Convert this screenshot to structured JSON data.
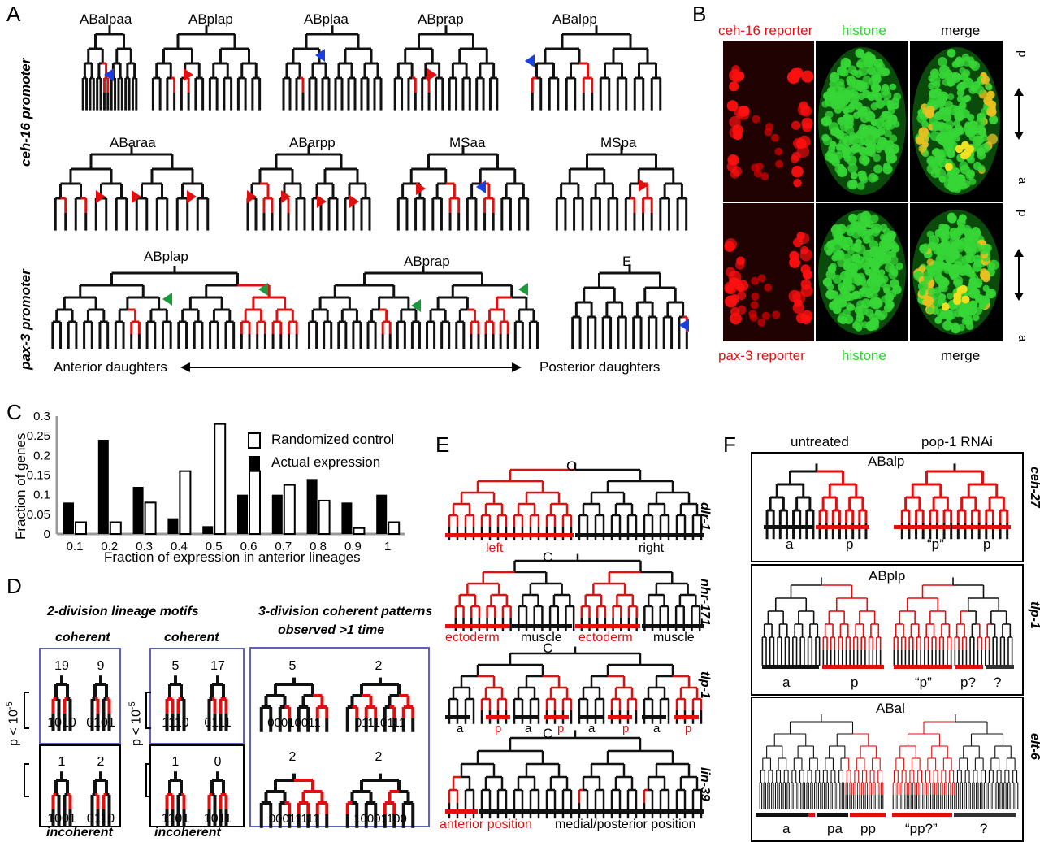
{
  "panels": {
    "A": {
      "letter": "A",
      "side_label_1": "ceh-16 promoter",
      "side_label_2": "pax-3 promoter",
      "row1": [
        "ABalpaa",
        "ABplap",
        "ABplaa",
        "ABprap",
        "ABalpp"
      ],
      "row2": [
        "ABaraa",
        "ABarpp",
        "MSaa",
        "MSpa"
      ],
      "row3": [
        "ABplap",
        "ABprap",
        "E"
      ],
      "anterior": "Anterior daughters",
      "posterior": "Posterior daughters"
    },
    "B": {
      "letter": "B",
      "top_labels": [
        "ceh-16 reporter",
        "histone",
        "merge"
      ],
      "bottom_labels": [
        "pax-3 reporter",
        "histone",
        "merge"
      ],
      "axis_p": "p",
      "axis_a": "a"
    },
    "C": {
      "letter": "C",
      "legend_control": "Randomized control",
      "legend_actual": "Actual expression"
    },
    "D": {
      "letter": "D",
      "title_left": "2-division lineage motifs",
      "title_right_1": "3-division coherent patterns",
      "title_right_2": "observed >1 time",
      "coherent": "coherent",
      "incoherent": "incoherent",
      "pvalue": "p < 10",
      "pexp": "-5",
      "box1": {
        "counts": [
          "19",
          "9"
        ],
        "codes": [
          "1010",
          "0101"
        ]
      },
      "box2": {
        "counts": [
          "1",
          "2"
        ],
        "codes": [
          "1001",
          "0110"
        ]
      },
      "box3": {
        "counts": [
          "5",
          "17"
        ],
        "codes": [
          "1110",
          "0111"
        ]
      },
      "box4": {
        "counts": [
          "1",
          "0"
        ],
        "codes": [
          "1101",
          "1011"
        ]
      },
      "box5": {
        "counts": [
          "5",
          "2",
          "2",
          "2"
        ],
        "codes": [
          "00010011",
          "01110111",
          "00011111",
          "10001100"
        ]
      }
    },
    "E": {
      "letter": "E",
      "root": "C",
      "genes": [
        "dlr-1",
        "nhr-171",
        "tlp-1",
        "lin-39"
      ],
      "row1": [
        "left",
        "right"
      ],
      "row2": [
        "ectoderm",
        "muscle",
        "ectoderm",
        "muscle"
      ],
      "row3": [
        "a",
        "p",
        "a",
        "p",
        "a",
        "p",
        "a",
        "p"
      ],
      "row4": [
        "anterior position",
        "medial/posterior position"
      ]
    },
    "F": {
      "letter": "F",
      "col_untreated": "untreated",
      "col_rnai": "pop-1 RNAi",
      "genes": [
        "ceh-27",
        "tlp-1",
        "elt-6"
      ],
      "lineages": [
        "ABalp",
        "ABplp",
        "ABal"
      ],
      "box1": [
        "a",
        "p",
        "“p”",
        "p"
      ],
      "box2": [
        "a",
        "p",
        "“p”",
        "p?",
        "?"
      ],
      "box3": [
        "a",
        "pa",
        "pp",
        "“pp?”",
        "?"
      ]
    }
  },
  "chart_data": {
    "type": "bar",
    "categories": [
      "0.1",
      "0.2",
      "0.3",
      "0.4",
      "0.5",
      "0.6",
      "0.7",
      "0.8",
      "0.9",
      "1"
    ],
    "series": [
      {
        "name": "Actual expression",
        "values": [
          0.08,
          0.24,
          0.12,
          0.04,
          0.02,
          0.1,
          0.1,
          0.14,
          0.08,
          0.1
        ]
      },
      {
        "name": "Randomized control",
        "values": [
          0.03,
          0.03,
          0.08,
          0.16,
          0.28,
          0.16,
          0.125,
          0.085,
          0.015,
          0.03
        ]
      }
    ],
    "xlabel": "Fraction of expression in anterior lineages",
    "ylabel": "Fraction of genes",
    "ylim": [
      0,
      0.3
    ],
    "yticks": [
      "0",
      "0.05",
      "0.1",
      "0.15",
      "0.2",
      "0.25",
      "0.3"
    ],
    "legend": "top-right",
    "colors": {
      "actual": "#000000",
      "control": "#ffffff"
    }
  }
}
